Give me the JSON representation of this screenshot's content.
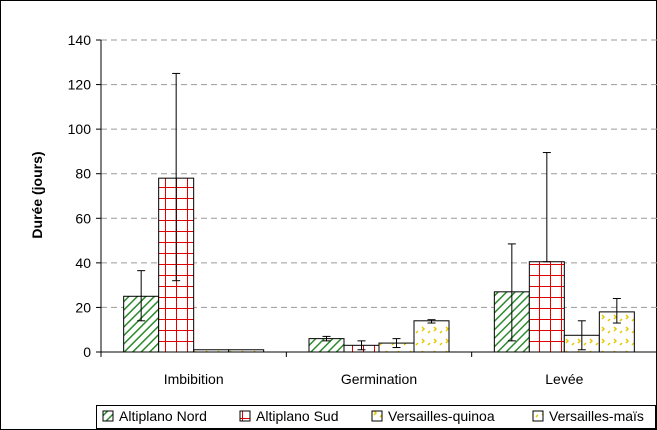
{
  "chart_data": {
    "type": "bar",
    "categories": [
      "Imbibition",
      "Germination",
      "Levée"
    ],
    "series": [
      {
        "name": "Altiplano Nord",
        "values": [
          25,
          6,
          27
        ],
        "err_low": [
          14,
          5,
          5
        ],
        "err_high": [
          36.5,
          7,
          48.5
        ],
        "pattern": "diagonal-hatch",
        "color": "#2e8b2e"
      },
      {
        "name": "Altiplano Sud",
        "values": [
          78,
          3,
          40.5
        ],
        "err_low": [
          32,
          1,
          40.5
        ],
        "err_high": [
          125,
          5,
          89.5
        ],
        "pattern": "grid",
        "color": "#e00000"
      },
      {
        "name": "Versailles-quinoa",
        "values": [
          1,
          4,
          7.5
        ],
        "err_low": [
          1,
          2,
          1
        ],
        "err_high": [
          1,
          6,
          14
        ],
        "pattern": "yellow-dots",
        "color": "#e8c800"
      },
      {
        "name": "Versailles-maïs",
        "values": [
          1,
          14,
          18
        ],
        "err_low": [
          1,
          13,
          13
        ],
        "err_high": [
          1,
          14.5,
          24
        ],
        "pattern": "yellow-dots",
        "color": "#e8c800"
      }
    ],
    "ylabel": "Durée (jours)",
    "xlabel": "",
    "title": "",
    "ylim": [
      0,
      140
    ],
    "yticks": [
      0,
      20,
      40,
      60,
      80,
      100,
      120,
      140
    ],
    "grid": true,
    "legend_position": "bottom"
  }
}
